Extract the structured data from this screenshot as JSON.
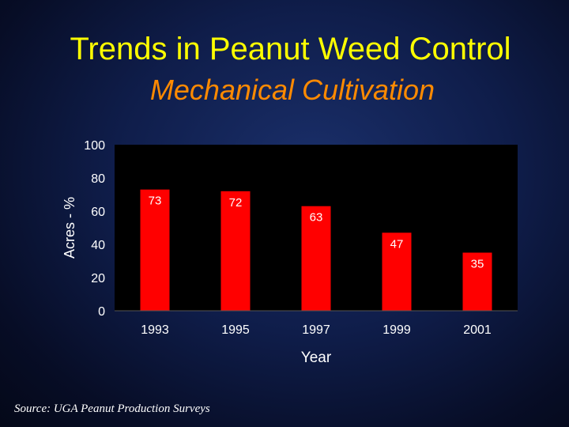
{
  "slide": {
    "title": "Trends in Peanut Weed Control",
    "subtitle": "Mechanical Cultivation",
    "source": "Source: UGA Peanut Production Surveys"
  },
  "colors": {
    "title": "#ffff00",
    "subtitle": "#ff8a00",
    "bar": "#ff0000",
    "plot_background": "#000000",
    "text": "#ffffff"
  },
  "chart_data": {
    "type": "bar",
    "categories": [
      "1993",
      "1995",
      "1997",
      "1999",
      "2001"
    ],
    "values": [
      73,
      72,
      63,
      47,
      35
    ],
    "data_labels": [
      "73",
      "72",
      "63",
      "47",
      "35"
    ],
    "xlabel": "Year",
    "ylabel": "Acres - %",
    "ylim": [
      0,
      100
    ],
    "yticks": [
      "0",
      "20",
      "40",
      "60",
      "80",
      "100"
    ],
    "grid": false,
    "legend": "none"
  }
}
